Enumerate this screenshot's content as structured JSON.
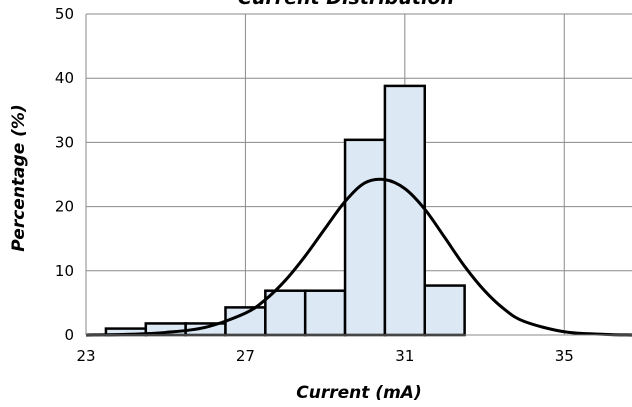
{
  "chart_data": {
    "type": "bar",
    "title": "Current Distribution",
    "xlabel": "Current (mA)",
    "ylabel": "Percentage (%)",
    "xlim": [
      23,
      36.7
    ],
    "ylim": [
      0,
      50
    ],
    "xticks": [
      "23",
      "27",
      "31",
      "35"
    ],
    "yticks": [
      "0",
      "10",
      "20",
      "30",
      "40",
      "50"
    ],
    "grid": true,
    "bar_color": "#dde8f5",
    "bar_edge_color": "#000000",
    "curve_color": "#000000",
    "series": [
      {
        "type": "histogram",
        "bins": [
          {
            "x0": 23.5,
            "x1": 24.5,
            "value": 1
          },
          {
            "x0": 24.5,
            "x1": 25.5,
            "value": 1.8
          },
          {
            "x0": 25.5,
            "x1": 26.5,
            "value": 1.8
          },
          {
            "x0": 26.5,
            "x1": 27.5,
            "value": 4.3
          },
          {
            "x0": 27.5,
            "x1": 28.5,
            "value": 6.9
          },
          {
            "x0": 28.5,
            "x1": 29.5,
            "value": 6.9
          },
          {
            "x0": 29.5,
            "x1": 30.5,
            "value": 30.4
          },
          {
            "x0": 30.5,
            "x1": 31.5,
            "value": 38.8
          },
          {
            "x0": 31.5,
            "x1": 32.5,
            "value": 7.7
          }
        ]
      },
      {
        "type": "line",
        "x": [
          23.0,
          24.0,
          25.0,
          26.0,
          27.0,
          27.5,
          28.0,
          28.5,
          29.0,
          29.5,
          30.0,
          30.5,
          31.0,
          31.5,
          32.0,
          32.5,
          33.0,
          33.5,
          34.0,
          35.0,
          36.0,
          36.7
        ],
        "y": [
          0.0,
          0.1,
          0.4,
          1.2,
          3.4,
          5.5,
          8.5,
          12.3,
          16.6,
          20.8,
          23.7,
          24.2,
          22.8,
          19.6,
          15.2,
          10.7,
          6.9,
          4.0,
          2.1,
          0.5,
          0.1,
          0.0
        ]
      }
    ]
  }
}
